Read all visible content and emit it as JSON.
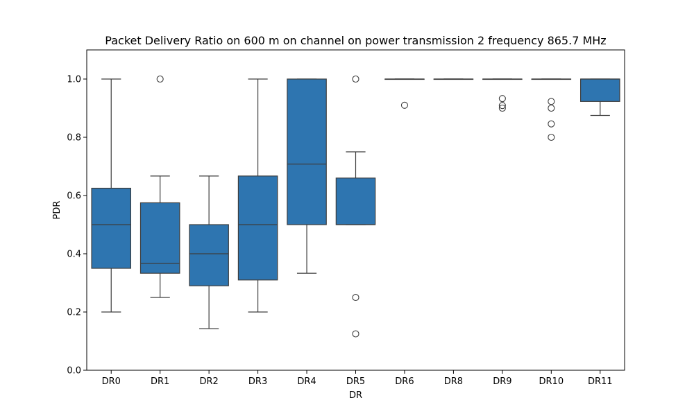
{
  "chart_data": {
    "type": "box",
    "title": "Packet Delivery Ratio on 600 m on channel on power transmission 2 frequency 865.7 MHz",
    "xlabel": "DR",
    "ylabel": "PDR",
    "ylim": [
      0.0,
      1.1
    ],
    "yticks": [
      "0.0",
      "0.2",
      "0.4",
      "0.6",
      "0.8",
      "1.0"
    ],
    "grid": false,
    "box_color": "#2e75b0",
    "line_color": "#3d3d3d",
    "categories": [
      "DR0",
      "DR1",
      "DR2",
      "DR3",
      "DR4",
      "DR5",
      "DR6",
      "DR8",
      "DR9",
      "DR10",
      "DR11"
    ],
    "boxes": [
      {
        "category": "DR0",
        "whislo": 0.2,
        "q1": 0.35,
        "med": 0.5,
        "q3": 0.625,
        "whishi": 1.0,
        "fliers": []
      },
      {
        "category": "DR1",
        "whislo": 0.25,
        "q1": 0.333,
        "med": 0.367,
        "q3": 0.575,
        "whishi": 0.667,
        "fliers": [
          1.0
        ]
      },
      {
        "category": "DR2",
        "whislo": 0.143,
        "q1": 0.29,
        "med": 0.4,
        "q3": 0.5,
        "whishi": 0.667,
        "fliers": []
      },
      {
        "category": "DR3",
        "whislo": 0.2,
        "q1": 0.31,
        "med": 0.5,
        "q3": 0.667,
        "whishi": 1.0,
        "fliers": []
      },
      {
        "category": "DR4",
        "whislo": 0.333,
        "q1": 0.5,
        "med": 0.708,
        "q3": 1.0,
        "whishi": 1.0,
        "fliers": []
      },
      {
        "category": "DR5",
        "whislo": 0.5,
        "q1": 0.5,
        "med": 0.5,
        "q3": 0.66,
        "whishi": 0.75,
        "fliers": [
          1.0,
          0.25,
          0.125
        ]
      },
      {
        "category": "DR6",
        "whislo": 1.0,
        "q1": 1.0,
        "med": 1.0,
        "q3": 1.0,
        "whishi": 1.0,
        "fliers": [
          0.91
        ]
      },
      {
        "category": "DR8",
        "whislo": 1.0,
        "q1": 1.0,
        "med": 1.0,
        "q3": 1.0,
        "whishi": 1.0,
        "fliers": []
      },
      {
        "category": "DR9",
        "whislo": 1.0,
        "q1": 1.0,
        "med": 1.0,
        "q3": 1.0,
        "whishi": 1.0,
        "fliers": [
          0.933,
          0.909,
          0.9
        ]
      },
      {
        "category": "DR10",
        "whislo": 1.0,
        "q1": 1.0,
        "med": 1.0,
        "q3": 1.0,
        "whishi": 1.0,
        "fliers": [
          0.923,
          0.9,
          0.846,
          0.8
        ]
      },
      {
        "category": "DR11",
        "whislo": 0.875,
        "q1": 0.923,
        "med": 1.0,
        "q3": 1.0,
        "whishi": 1.0,
        "fliers": []
      }
    ]
  }
}
